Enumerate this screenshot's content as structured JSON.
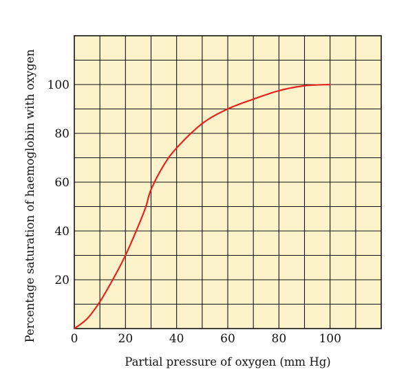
{
  "chart_data": {
    "type": "line",
    "title": "",
    "xlabel": "Partial pressure of oxygen (mm Hg)",
    "ylabel": "Percentage saturation of haemoglobin with oxygen",
    "xlim": [
      0,
      120
    ],
    "ylim": [
      0,
      120
    ],
    "grid": true,
    "x_ticks": [
      0,
      20,
      40,
      60,
      80,
      100
    ],
    "y_ticks": [
      20,
      40,
      60,
      80,
      100
    ],
    "x_tick_labels": [
      "0",
      "20",
      "40",
      "60",
      "80",
      "100"
    ],
    "y_tick_labels": [
      "20",
      "40",
      "60",
      "80",
      "100"
    ],
    "series": [
      {
        "color": "#e8231f",
        "x": [
          0,
          5,
          10,
          15,
          20,
          25,
          28,
          30,
          35,
          40,
          50,
          60,
          70,
          80,
          90,
          100
        ],
        "y": [
          0,
          4,
          11,
          20,
          30,
          42,
          50,
          57,
          67,
          74,
          84,
          90,
          94,
          97.5,
          99.5,
          100
        ]
      }
    ],
    "colors": {
      "plot_background": "#fcf3cb",
      "grid": "#111111",
      "curve": "#e8231f"
    }
  }
}
